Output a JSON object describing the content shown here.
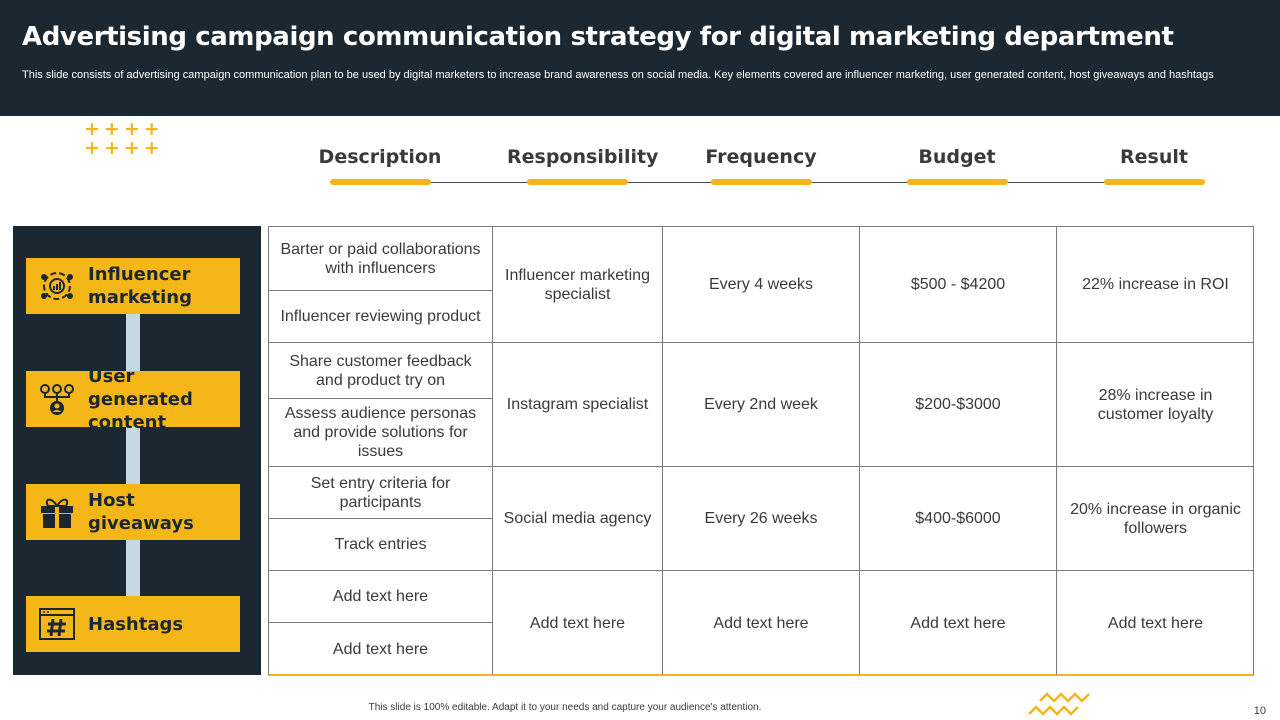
{
  "header": {
    "title": "Advertising campaign communication strategy for digital marketing department",
    "subtitle": "This slide consists of advertising campaign communication plan to be used by digital marketers to increase brand awareness on social media. Key elements covered are influencer marketing, user generated content, host giveaways and hashtags"
  },
  "decor": {
    "plus_row1": "++++",
    "plus_row2": "++++"
  },
  "columns": [
    "Description",
    "Responsibility",
    "Frequency",
    "Budget",
    "Result"
  ],
  "categories": [
    {
      "label": "Influencer marketing",
      "icon": "influencer-icon"
    },
    {
      "label": "User generated content",
      "icon": "network-user-icon"
    },
    {
      "label": "Host giveaways",
      "icon": "gift-icon"
    },
    {
      "label": "Hashtags",
      "icon": "hashtag-icon"
    }
  ],
  "rows": [
    {
      "descriptions": [
        "Barter or paid collaborations with influencers",
        "Influencer  reviewing product"
      ],
      "responsibility": "Influencer  marketing specialist",
      "frequency": "Every 4 weeks",
      "budget": "$500 - $4200",
      "result": "22% increase in ROI"
    },
    {
      "descriptions": [
        "Share customer feedback and product try on",
        "Assess audience personas and provide solutions for issues"
      ],
      "responsibility": "Instagram specialist",
      "frequency": "Every 2nd week",
      "budget": "$200-$3000",
      "result": "28% increase in customer loyalty"
    },
    {
      "descriptions": [
        "Set entry criteria for participants",
        "Track entries"
      ],
      "responsibility": "Social media agency",
      "frequency": "Every 26 weeks",
      "budget": "$400-$6000",
      "result": "20% increase in organic followers"
    },
    {
      "descriptions": [
        "Add text here",
        "Add text here"
      ],
      "responsibility": "Add text here",
      "frequency": "Add text here",
      "budget": "Add text here",
      "result": "Add text here"
    }
  ],
  "footer": {
    "note": "This slide is 100% editable.  Adapt it to your needs and capture your audience's attention.",
    "page_number": "10"
  },
  "colors": {
    "dark": "#1b2831",
    "accent": "#f5b718",
    "connector": "#c4d9e2"
  }
}
